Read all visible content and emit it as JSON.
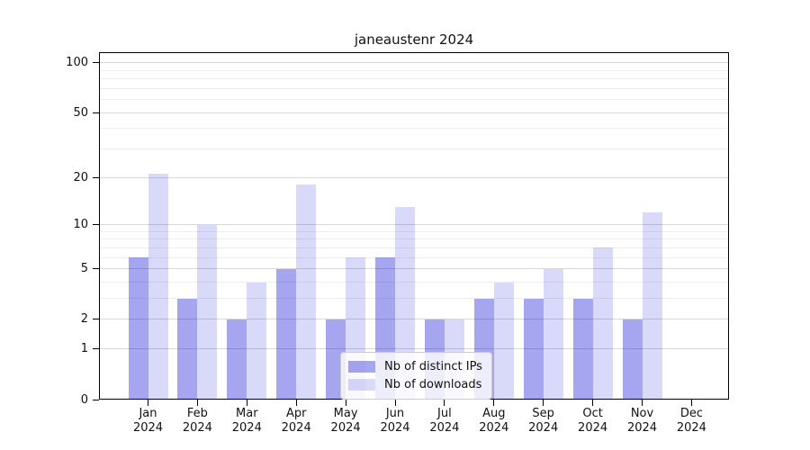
{
  "title": "janeaustenr 2024",
  "chart_data": {
    "type": "bar",
    "title": "janeaustenr 2024",
    "categories": [
      "Jan",
      "Feb",
      "Mar",
      "Apr",
      "May",
      "Jun",
      "Jul",
      "Aug",
      "Sep",
      "Oct",
      "Nov",
      "Dec"
    ],
    "category_year": "2024",
    "series": [
      {
        "name": "Nb of distinct IPs",
        "color": "rgba(0,0,213,0.35)",
        "values": [
          6,
          3,
          2,
          5,
          2,
          6,
          2,
          3,
          3,
          3,
          2,
          0
        ]
      },
      {
        "name": "Nb of downloads",
        "color": "rgba(0,0,213,0.15)",
        "values": [
          21,
          10,
          4,
          18,
          6,
          13,
          2,
          4,
          5,
          7,
          12,
          0
        ]
      }
    ],
    "xlabel": "",
    "ylabel": "",
    "yscale": "log1p",
    "ylim": [
      0,
      116
    ],
    "yticks": [
      0,
      1,
      2,
      5,
      10,
      20,
      50,
      100
    ],
    "ytick_labels": [
      "0",
      "1",
      "2",
      "5",
      "10",
      "20",
      "50",
      "100"
    ],
    "yticks_minor": [
      3,
      4,
      6,
      7,
      8,
      9,
      30,
      40,
      60,
      70,
      80,
      90
    ],
    "grid": "on",
    "legend_position": "lower center",
    "colors": {
      "grid_major": "#d8d8d8",
      "grid_minor": "#ededed",
      "bar_ips_hex": "#a6a6f0",
      "bar_downloads_hex": "#d9d9f9"
    }
  }
}
